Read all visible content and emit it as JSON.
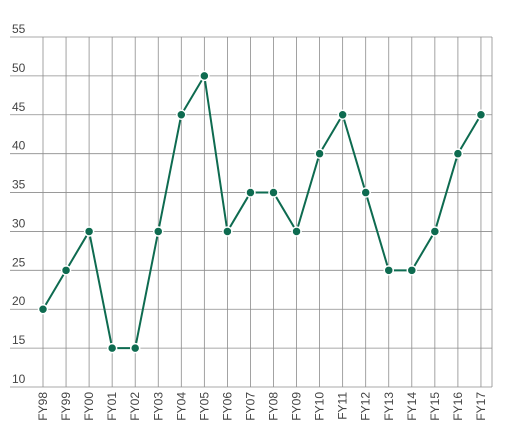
{
  "chart_data": {
    "type": "line",
    "categories": [
      "FY98",
      "FY99",
      "FY00",
      "FY01",
      "FY02",
      "FY03",
      "FY04",
      "FY05",
      "FY06",
      "FY07",
      "FY08",
      "FY09",
      "FY10",
      "FY11",
      "FY12",
      "FY13",
      "FY14",
      "FY15",
      "FY16",
      "FY17"
    ],
    "values": [
      20,
      25,
      30,
      15,
      15,
      30,
      45,
      50,
      30,
      35,
      35,
      30,
      40,
      45,
      35,
      25,
      25,
      30,
      40,
      45
    ],
    "color": "#0e6b50",
    "ylim": [
      10,
      55
    ],
    "yticks": [
      10,
      15,
      20,
      25,
      30,
      35,
      40,
      45,
      50,
      55
    ],
    "grid": true
  }
}
